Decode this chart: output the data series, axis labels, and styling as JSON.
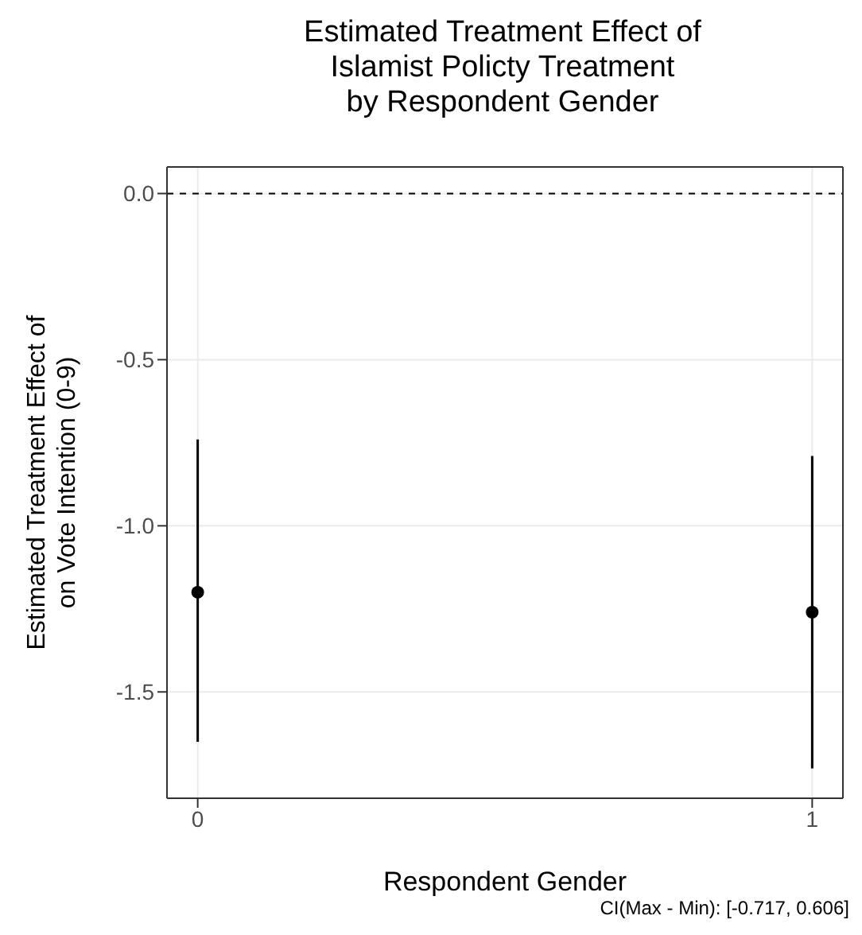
{
  "chart_data": {
    "type": "scatter",
    "title": "Estimated Treatment Effect of\nIslamist Policty Treatment\nby Respondent Gender",
    "xlabel": "Respondent Gender",
    "ylabel": "Estimated Treatment Effect of\non Vote Intention (0-9)",
    "x": [
      0,
      1
    ],
    "series": [
      {
        "color": "#000000",
        "values": [
          -1.2,
          -1.26
        ],
        "errors": [
          [
            -1.65,
            -0.74
          ],
          [
            -1.73,
            -0.79
          ]
        ]
      }
    ],
    "xlim": [
      -0.05,
      1.05
    ],
    "xticks": [
      0,
      1
    ],
    "ylim": [
      -1.82,
      0.08
    ],
    "yticks": [
      {
        "value": 0,
        "label": "0.0"
      },
      -0.5,
      {
        "value": -1,
        "label": "-1.0"
      },
      -1.5
    ],
    "ref_lines": [
      {
        "axis": "y",
        "value": 0,
        "color": "#000000",
        "line_style": "dashed"
      }
    ],
    "annotations": [
      "CI(Max - Min): [-0.717, 0.606]"
    ],
    "grid": true,
    "marker": "circle"
  }
}
